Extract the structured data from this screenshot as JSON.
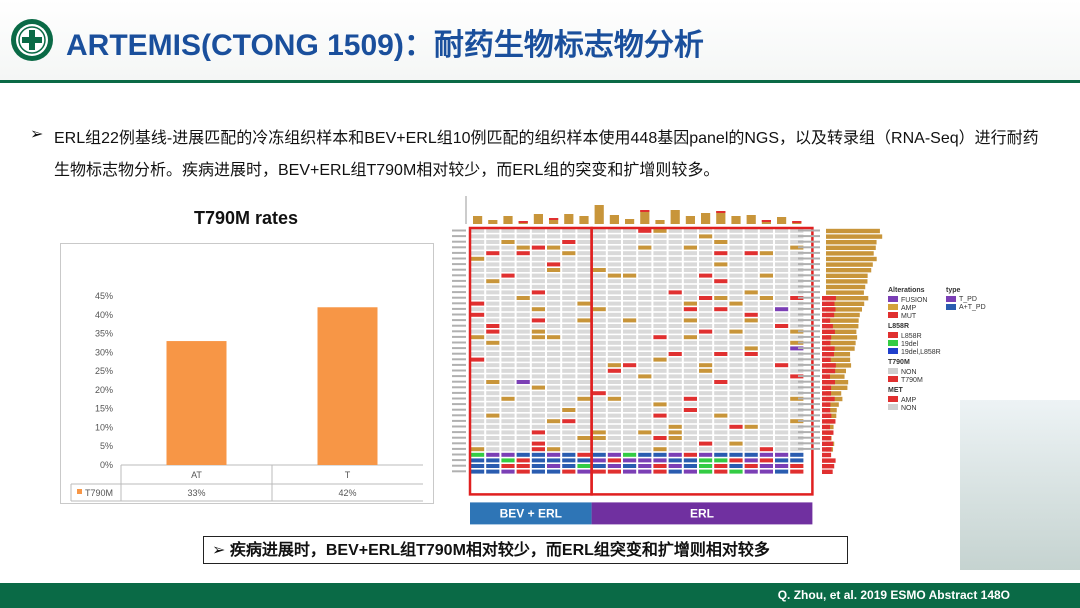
{
  "header": {
    "title": "ARTEMIS(CTONG 1509)：耐药生物标志物分析"
  },
  "body": {
    "bullet_arrow": "➢",
    "bullet": "ERL组22例基线-进展匹配的冷冻组织样本和BEV+ERL组10例匹配的组织样本使用448基因panel的NGS，以及转录组（RNA-Seq）进行耐药生物标志物分析。疾病进展时，BEV+ERL组T790M相对较少，而ERL组的突变和扩增则较多。"
  },
  "chart_data": [
    {
      "type": "bar",
      "title": "T790M rates",
      "categories": [
        "AT",
        "T"
      ],
      "series": [
        {
          "name": "T790M",
          "values": [
            33,
            42
          ]
        }
      ],
      "value_labels": [
        "33%",
        "42%"
      ],
      "ylim": [
        0,
        45
      ],
      "yticks": [
        "0%",
        "5%",
        "10%",
        "15%",
        "20%",
        "25%",
        "30%",
        "35%",
        "40%",
        "45%"
      ],
      "legend": "bottom table",
      "bar_color": "#f79646",
      "grid": false
    },
    {
      "type": "heatmap",
      "groups": [
        {
          "label": "BEV + ERL",
          "color": "#2e75b6"
        },
        {
          "label": "ERL",
          "color": "#7030a0"
        }
      ],
      "legend": [
        {
          "title": "Alterations",
          "items": [
            {
              "label": "FUSION",
              "color": "#7b3fb5"
            },
            {
              "label": "AMP",
              "color": "#d4a23a"
            },
            {
              "label": "MUT",
              "color": "#e03030"
            }
          ]
        },
        {
          "title": "type",
          "items": [
            {
              "label": "T_PD",
              "color": "#7b3fb5"
            },
            {
              "label": "A+T_PD",
              "color": "#2a5cb0"
            }
          ]
        },
        {
          "title": "L858R",
          "items": [
            {
              "label": "L858R",
              "color": "#e03030"
            },
            {
              "label": "19del",
              "color": "#33cc44"
            },
            {
              "label": "19del,L858R",
              "color": "#1f3fcc"
            }
          ]
        },
        {
          "title": "T790M",
          "items": [
            {
              "label": "NON",
              "color": "#cfcfcf"
            },
            {
              "label": "T790M",
              "color": "#e03030"
            }
          ]
        },
        {
          "title": "MET",
          "items": [
            {
              "label": "AMP",
              "color": "#e03030"
            },
            {
              "label": "NON",
              "color": "#cfcfcf"
            }
          ]
        }
      ],
      "colors": {
        "cell": "#d9d9d9",
        "amp": "#c8953a",
        "mut": "#e03030",
        "fusion": "#7b3fb5",
        "frame": "#e02020"
      }
    }
  ],
  "summary": {
    "arrow": "➢",
    "text": "疾病进展时，BEV+ERL组T790M相对较少，而ERL组突变和扩增则相对较多"
  },
  "footer": {
    "citation": "Q. Zhou, et al. 2019 ESMO Abstract 148O"
  }
}
